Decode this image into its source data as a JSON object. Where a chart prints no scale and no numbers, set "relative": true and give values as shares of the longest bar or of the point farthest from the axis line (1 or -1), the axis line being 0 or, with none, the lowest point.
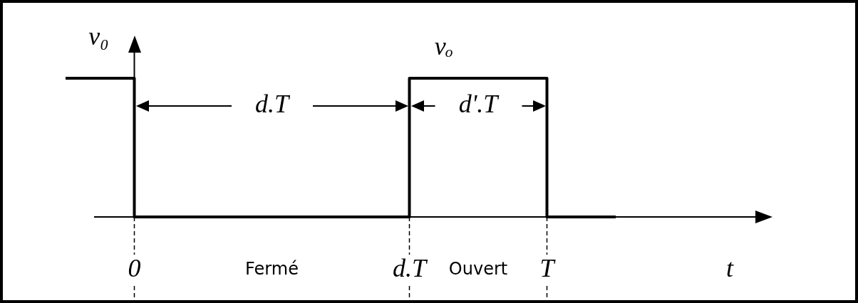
{
  "chart_data": {
    "type": "step",
    "relative": true,
    "categories": [
      null,
      "0",
      null,
      null,
      null,
      "d.T",
      null,
      "T",
      null
    ],
    "series": [
      {
        "name": "vₒ",
        "color": "#000000",
        "values": [
          1,
          0,
          0,
          0,
          0,
          1,
          1,
          0,
          0
        ]
      }
    ],
    "xlabel": "t",
    "ylabel": "v₀",
    "annotations": [
      "d.T",
      "d'.T",
      "Fermé",
      "Ouvert"
    ]
  }
}
